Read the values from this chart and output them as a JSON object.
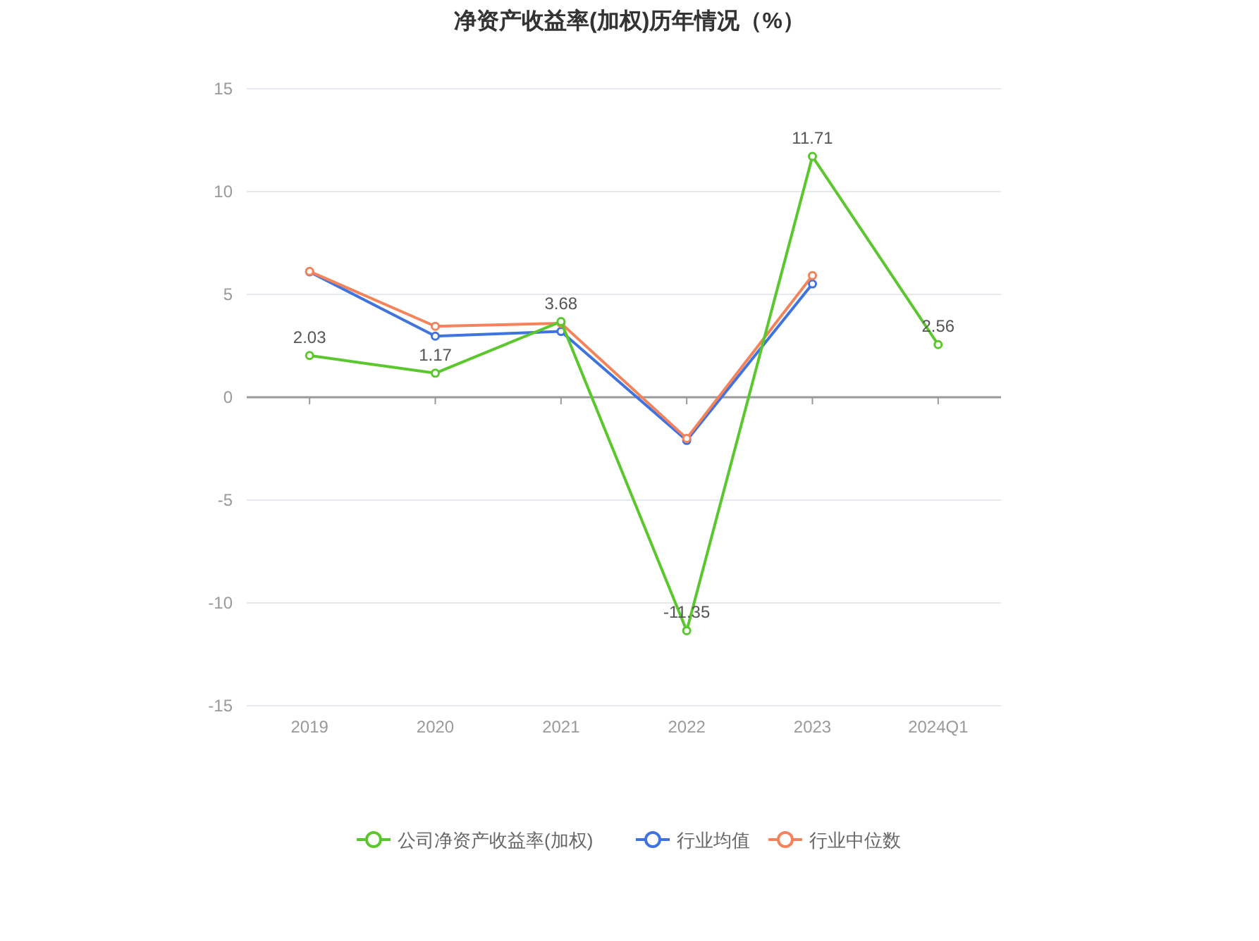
{
  "chart_data": {
    "type": "line",
    "title": "净资产收益率(加权)历年情况（%）",
    "categories": [
      "2019",
      "2020",
      "2021",
      "2022",
      "2023",
      "2024Q1"
    ],
    "series": [
      {
        "name": "公司净资产收益率(加权)",
        "color": "#5ac72d",
        "values": [
          2.03,
          1.17,
          3.68,
          -11.35,
          11.71,
          2.56
        ],
        "data_labels": true
      },
      {
        "name": "行业均值",
        "color": "#3e73e0",
        "values": [
          6.1,
          2.97,
          3.2,
          -2.1,
          5.51,
          null
        ]
      },
      {
        "name": "行业中位数",
        "color": "#f4825a",
        "values": [
          6.12,
          3.45,
          3.6,
          -2.0,
          5.92,
          null
        ]
      }
    ],
    "ylim": [
      -15,
      15
    ],
    "yticks": [
      -15,
      -10,
      -5,
      0,
      5,
      10,
      15
    ],
    "grid": "y",
    "legend": "bottom",
    "marker": "circle"
  }
}
